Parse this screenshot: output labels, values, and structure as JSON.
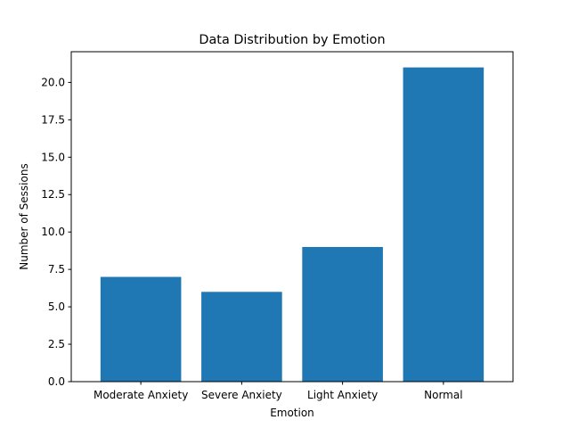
{
  "chart_data": {
    "type": "bar",
    "title": "Data Distribution by Emotion",
    "xlabel": "Emotion",
    "ylabel": "Number of Sessions",
    "categories": [
      "Moderate Anxiety",
      "Severe Anxiety",
      "Light Anxiety",
      "Normal"
    ],
    "values": [
      7,
      6,
      9,
      21
    ],
    "ylim": [
      0,
      22.05
    ],
    "yticks": [
      0.0,
      2.5,
      5.0,
      7.5,
      10.0,
      12.5,
      15.0,
      17.5,
      20.0
    ],
    "ytick_labels": [
      "0.0",
      "2.5",
      "5.0",
      "7.5",
      "10.0",
      "12.5",
      "15.0",
      "17.5",
      "20.0"
    ],
    "bar_color": "#1f77b4",
    "grid": false,
    "legend": "none"
  }
}
